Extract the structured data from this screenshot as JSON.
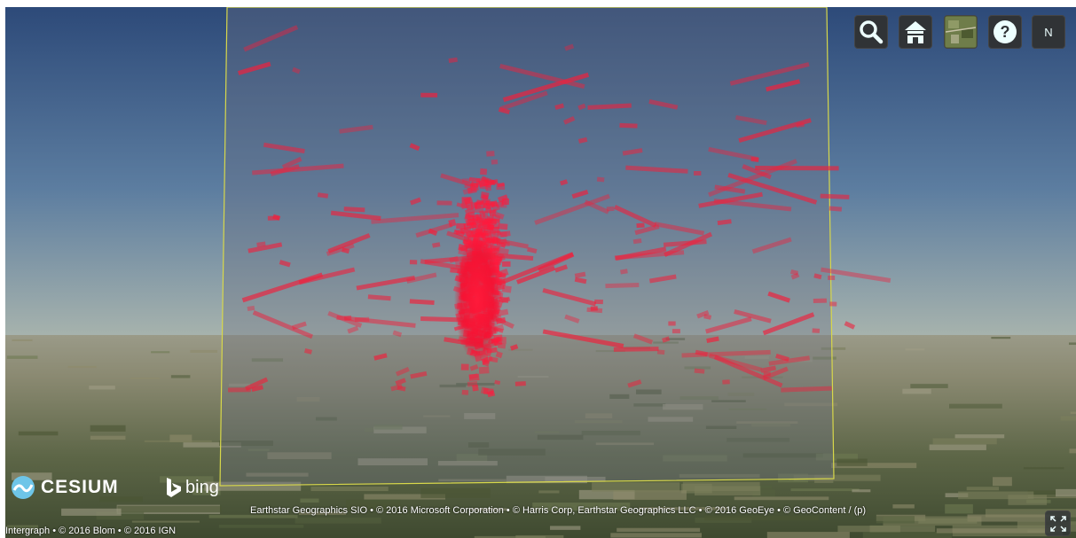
{
  "toolbar": {
    "navigation_label": "N"
  },
  "logos": {
    "cesium": "CESIUM",
    "bing": "bing"
  },
  "credits": {
    "primary": "Earthstar Geographics SIO • © 2016 Microsoft Corporation • © Harris Corp, Earthstar Geographics LLC • © 2016 GeoEye • © GeoContent / (p)",
    "secondary": "Intergraph • © 2016 Blom • © 2016 IGN"
  }
}
